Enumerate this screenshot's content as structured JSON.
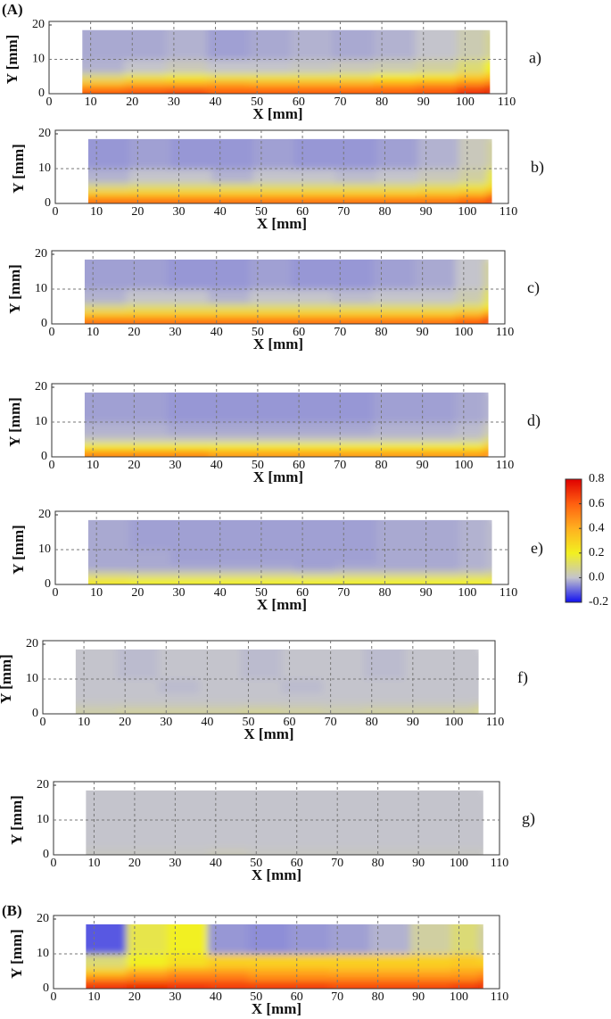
{
  "figure_labels": [
    "(A)",
    "(B)"
  ],
  "colorbar": {
    "clim": [
      -0.2,
      0.8
    ],
    "colormap": [
      "#1010f0",
      "#c4c4cc",
      "#f2f020",
      "#ffb020",
      "#ff6010",
      "#e00000"
    ],
    "ticks": [
      0.8,
      0.6,
      0.4,
      0.2,
      {
        "value": 0,
        "label": "0.0"
      },
      -0.2
    ]
  },
  "chart_data": [
    {
      "type": "heatmap",
      "label": "a)",
      "xlabel": "X [mm]",
      "ylabel": "Y [mm]",
      "xlim": [
        0,
        110
      ],
      "ylim": [
        0,
        20
      ],
      "xticks": [
        0,
        10,
        20,
        30,
        40,
        50,
        60,
        70,
        80,
        90,
        100,
        110
      ],
      "yticks": [
        0,
        10,
        20
      ],
      "grid": true,
      "x_edges": [
        8,
        18,
        28,
        38,
        48,
        58,
        68,
        78,
        88,
        98,
        106
      ],
      "y_edges": [
        0,
        2,
        4,
        6,
        10,
        18.5
      ],
      "z": [
        [
          0.6,
          0.62,
          0.65,
          0.6,
          0.6,
          0.6,
          0.6,
          0.6,
          0.62,
          0.7,
          0.8
        ],
        [
          0.35,
          0.4,
          0.4,
          0.42,
          0.4,
          0.4,
          0.4,
          0.42,
          0.45,
          0.5,
          0.55
        ],
        [
          0.1,
          0.15,
          0.18,
          0.15,
          0.15,
          0.15,
          0.15,
          0.2,
          0.22,
          0.3,
          0.35
        ],
        [
          -0.02,
          0,
          0.02,
          0,
          0,
          0.01,
          0.02,
          0.03,
          0.05,
          0.1,
          0.2
        ],
        [
          -0.03,
          -0.03,
          -0.02,
          -0.04,
          -0.03,
          -0.02,
          -0.03,
          -0.02,
          0,
          0.03,
          0.06
        ]
      ]
    },
    {
      "type": "heatmap",
      "label": "b)",
      "xlabel": "X [mm]",
      "ylabel": "Y [mm]",
      "xlim": [
        0,
        110
      ],
      "ylim": [
        0,
        20
      ],
      "xticks": [
        0,
        10,
        20,
        30,
        40,
        50,
        60,
        70,
        80,
        90,
        100,
        110
      ],
      "yticks": [
        0,
        10,
        20
      ],
      "grid": true,
      "x_edges": [
        8,
        18,
        28,
        38,
        48,
        58,
        68,
        78,
        88,
        98,
        106
      ],
      "y_edges": [
        0,
        2,
        4,
        6,
        10,
        18.5
      ],
      "z": [
        [
          0.55,
          0.55,
          0.55,
          0.55,
          0.55,
          0.55,
          0.55,
          0.55,
          0.55,
          0.6,
          0.7
        ],
        [
          0.3,
          0.3,
          0.3,
          0.3,
          0.3,
          0.3,
          0.3,
          0.3,
          0.32,
          0.35,
          0.45
        ],
        [
          0.08,
          0.1,
          0.1,
          0.1,
          0.1,
          0.1,
          0.1,
          0.1,
          0.12,
          0.15,
          0.25
        ],
        [
          -0.02,
          0,
          0,
          -0.02,
          0,
          0,
          -0.01,
          0,
          0.02,
          0.05,
          0.15
        ],
        [
          -0.05,
          -0.04,
          -0.05,
          -0.05,
          -0.04,
          -0.05,
          -0.05,
          -0.04,
          -0.02,
          0.02,
          0.05
        ]
      ]
    },
    {
      "type": "heatmap",
      "label": "c)",
      "xlabel": "X [mm]",
      "ylabel": "Y [mm]",
      "xlim": [
        0,
        110
      ],
      "ylim": [
        0,
        20
      ],
      "xticks": [
        0,
        10,
        20,
        30,
        40,
        50,
        60,
        70,
        80,
        90,
        100,
        110
      ],
      "yticks": [
        0,
        10,
        20
      ],
      "grid": true,
      "x_edges": [
        8,
        18,
        28,
        38,
        48,
        58,
        68,
        78,
        88,
        98,
        106
      ],
      "y_edges": [
        0,
        2,
        4,
        6,
        10,
        18.5
      ],
      "z": [
        [
          0.55,
          0.55,
          0.55,
          0.55,
          0.55,
          0.55,
          0.55,
          0.55,
          0.55,
          0.6,
          0.7
        ],
        [
          0.3,
          0.3,
          0.3,
          0.3,
          0.3,
          0.3,
          0.3,
          0.3,
          0.3,
          0.35,
          0.45
        ],
        [
          0.08,
          0.1,
          0.1,
          0.1,
          0.1,
          0.1,
          0.1,
          0.1,
          0.1,
          0.12,
          0.22
        ],
        [
          -0.02,
          0,
          0,
          -0.02,
          0,
          0,
          -0.01,
          0,
          0,
          0.03,
          0.12
        ],
        [
          -0.04,
          -0.04,
          -0.05,
          -0.05,
          -0.04,
          -0.05,
          -0.05,
          -0.04,
          -0.03,
          0,
          0.05
        ]
      ]
    },
    {
      "type": "heatmap",
      "label": "d)",
      "xlabel": "X [mm]",
      "ylabel": "Y [mm]",
      "xlim": [
        0,
        110
      ],
      "ylim": [
        0,
        20
      ],
      "xticks": [
        0,
        10,
        20,
        30,
        40,
        50,
        60,
        70,
        80,
        90,
        100,
        110
      ],
      "yticks": [
        0,
        10,
        20
      ],
      "grid": true,
      "x_edges": [
        8,
        18,
        28,
        38,
        48,
        58,
        68,
        78,
        88,
        98,
        106
      ],
      "y_edges": [
        0,
        2,
        4,
        6,
        10,
        18.5
      ],
      "z": [
        [
          0.5,
          0.5,
          0.5,
          0.45,
          0.45,
          0.45,
          0.45,
          0.45,
          0.45,
          0.45,
          0.5
        ],
        [
          0.2,
          0.2,
          0.2,
          0.2,
          0.2,
          0.2,
          0.2,
          0.2,
          0.2,
          0.2,
          0.3
        ],
        [
          0.02,
          0.02,
          0.02,
          0.02,
          0.02,
          0.02,
          0.02,
          0.02,
          0.02,
          0.03,
          0.1
        ],
        [
          -0.02,
          -0.02,
          -0.03,
          -0.03,
          -0.03,
          -0.03,
          -0.03,
          -0.02,
          -0.02,
          -0.01,
          0.02
        ],
        [
          -0.04,
          -0.04,
          -0.05,
          -0.05,
          -0.05,
          -0.05,
          -0.05,
          -0.04,
          -0.04,
          -0.03,
          -0.02
        ]
      ]
    },
    {
      "type": "heatmap",
      "label": "e)",
      "xlabel": "X [mm]",
      "ylabel": "Y [mm]",
      "xlim": [
        0,
        110
      ],
      "ylim": [
        0,
        20
      ],
      "xticks": [
        0,
        10,
        20,
        30,
        40,
        50,
        60,
        70,
        80,
        90,
        100,
        110
      ],
      "yticks": [
        0,
        10,
        20
      ],
      "grid": true,
      "x_edges": [
        8,
        18,
        28,
        38,
        48,
        58,
        68,
        78,
        88,
        98,
        106
      ],
      "y_edges": [
        0,
        2,
        4,
        6,
        10,
        18.5
      ],
      "z": [
        [
          0.22,
          0.2,
          0.2,
          0.2,
          0.2,
          0.2,
          0.2,
          0.2,
          0.2,
          0.2,
          0.22
        ],
        [
          0.06,
          0.05,
          0.05,
          0.05,
          0.05,
          0.04,
          0.05,
          0.05,
          0.05,
          0.06,
          0.08
        ],
        [
          -0.03,
          -0.03,
          -0.03,
          -0.03,
          -0.03,
          -0.04,
          -0.03,
          -0.03,
          -0.03,
          -0.02,
          -0.01
        ],
        [
          -0.03,
          -0.03,
          -0.04,
          -0.04,
          -0.04,
          -0.04,
          -0.04,
          -0.03,
          -0.03,
          -0.02,
          -0.01
        ],
        [
          -0.03,
          -0.04,
          -0.04,
          -0.04,
          -0.04,
          -0.04,
          -0.04,
          -0.03,
          -0.03,
          -0.02,
          -0.01
        ]
      ]
    },
    {
      "type": "heatmap",
      "label": "f)",
      "xlabel": "X [mm]",
      "ylabel": "Y [mm]",
      "xlim": [
        0,
        110
      ],
      "ylim": [
        0,
        20
      ],
      "xticks": [
        0,
        10,
        20,
        30,
        40,
        50,
        60,
        70,
        80,
        90,
        100,
        110
      ],
      "yticks": [
        0,
        10,
        20
      ],
      "grid": true,
      "x_edges": [
        8,
        18,
        28,
        38,
        48,
        58,
        68,
        78,
        88,
        98,
        106
      ],
      "y_edges": [
        0,
        2,
        4,
        6,
        10,
        18.5
      ],
      "z": [
        [
          0.04,
          0.05,
          0.05,
          0.05,
          0.06,
          0.05,
          0.04,
          0.05,
          0.05,
          0.05,
          0.08
        ],
        [
          0.01,
          0.01,
          0.01,
          0.01,
          0.01,
          0.01,
          0.01,
          0.01,
          0.01,
          0.01,
          0.02
        ],
        [
          0,
          0,
          0,
          0,
          0,
          0,
          0,
          0,
          0,
          0,
          0
        ],
        [
          0,
          0,
          -0.01,
          0,
          0,
          -0.01,
          0,
          0,
          0,
          0,
          0
        ],
        [
          0,
          -0.01,
          0,
          0,
          -0.01,
          0,
          0,
          -0.01,
          0,
          0,
          0
        ]
      ]
    },
    {
      "type": "heatmap",
      "label": "g)",
      "xlabel": "X [mm]",
      "ylabel": "Y [mm]",
      "xlim": [
        0,
        110
      ],
      "ylim": [
        0,
        20
      ],
      "xticks": [
        0,
        10,
        20,
        30,
        40,
        50,
        60,
        70,
        80,
        90,
        100,
        110
      ],
      "yticks": [
        0,
        10,
        20
      ],
      "grid": true,
      "x_edges": [
        8,
        18,
        28,
        38,
        48,
        58,
        68,
        78,
        88,
        98,
        106
      ],
      "y_edges": [
        0,
        2,
        4,
        6,
        10,
        18.5
      ],
      "z": [
        [
          0.01,
          0.01,
          0.01,
          0.02,
          0.01,
          0.01,
          0.01,
          0.01,
          0.01,
          0.01,
          0.01
        ],
        [
          0,
          0,
          0,
          0,
          0,
          0,
          0,
          0,
          0,
          0,
          0
        ],
        [
          0,
          0,
          0,
          0,
          0,
          0,
          0,
          0,
          0,
          0,
          0
        ],
        [
          0,
          0,
          0,
          0,
          0,
          0,
          0,
          0,
          0,
          0,
          0
        ],
        [
          0,
          0,
          0,
          0,
          0,
          0,
          0,
          0,
          0,
          0,
          0
        ]
      ]
    },
    {
      "type": "heatmap",
      "xlabel": "X [mm]",
      "ylabel": "Y [mm]",
      "xlim": [
        0,
        110
      ],
      "ylim": [
        0,
        20
      ],
      "xticks": [
        0,
        10,
        20,
        30,
        40,
        50,
        60,
        70,
        80,
        90,
        100,
        110
      ],
      "yticks": [
        0,
        10,
        20
      ],
      "grid": true,
      "x_edges": [
        8,
        18,
        28,
        38,
        48,
        58,
        68,
        78,
        88,
        98,
        106
      ],
      "y_edges": [
        0,
        2,
        4,
        6,
        10,
        18.5
      ],
      "z": [
        [
          0.7,
          0.72,
          0.7,
          0.68,
          0.68,
          0.68,
          0.65,
          0.65,
          0.65,
          0.68,
          0.75
        ],
        [
          0.5,
          0.52,
          0.55,
          0.55,
          0.5,
          0.5,
          0.5,
          0.5,
          0.5,
          0.5,
          0.55
        ],
        [
          0.3,
          0.4,
          0.45,
          0.45,
          0.42,
          0.42,
          0.4,
          0.4,
          0.4,
          0.42,
          0.45
        ],
        [
          0.1,
          0.2,
          0.25,
          0.3,
          0.3,
          0.3,
          0.3,
          0.3,
          0.3,
          0.32,
          0.3
        ],
        [
          -0.12,
          0.15,
          0.2,
          -0.05,
          -0.06,
          -0.05,
          -0.04,
          -0.02,
          0.05,
          0.1,
          0.05
        ]
      ]
    }
  ]
}
